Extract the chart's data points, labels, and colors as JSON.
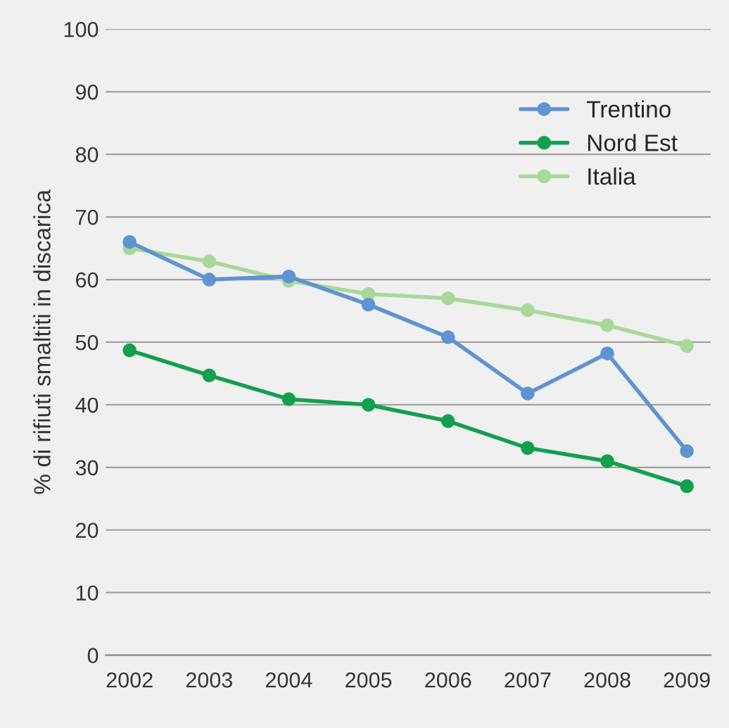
{
  "chart_data": {
    "type": "line",
    "ylabel": "% di rifiuti smaltiti in discarica",
    "categories": [
      "2002",
      "2003",
      "2004",
      "2005",
      "2006",
      "2007",
      "2008",
      "2009"
    ],
    "series": [
      {
        "name": "Trentino",
        "color": "#5f93d2",
        "values": [
          66,
          60,
          60.5,
          56,
          50.8,
          41.8,
          48.2,
          32.6
        ]
      },
      {
        "name": "Nord Est",
        "color": "#12a04e",
        "values": [
          48.7,
          44.7,
          40.9,
          40,
          37.4,
          33.1,
          31,
          27
        ]
      },
      {
        "name": "Italia",
        "color": "#a9d89b",
        "values": [
          65,
          62.9,
          59.8,
          57.7,
          57,
          55.1,
          52.7,
          49.4
        ]
      }
    ],
    "ylim": [
      0,
      100
    ],
    "yticks": [
      0,
      10,
      20,
      30,
      40,
      50,
      60,
      70,
      80,
      90,
      100
    ],
    "grid": "y",
    "legend": "top right",
    "marker": "circle",
    "line_style": "solid"
  }
}
